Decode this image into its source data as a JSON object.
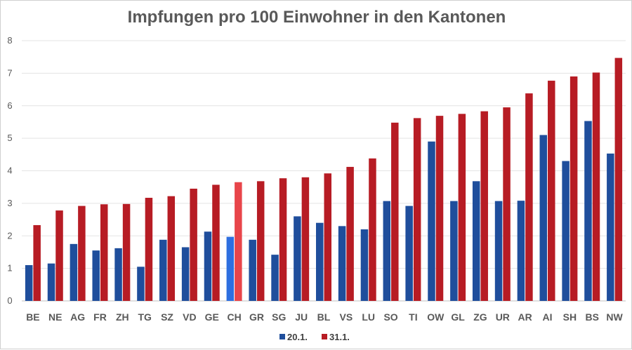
{
  "chart_data": {
    "type": "bar",
    "title": "Impfungen pro 100 Einwohner in den Kantonen",
    "xlabel": "",
    "ylabel": "",
    "ylim": [
      0,
      8
    ],
    "yticks": [
      0,
      1,
      2,
      3,
      4,
      5,
      6,
      7,
      8
    ],
    "grid": true,
    "legend_position": "bottom",
    "highlight_category": "CH",
    "categories": [
      "BE",
      "NE",
      "AG",
      "FR",
      "ZH",
      "TG",
      "SZ",
      "VD",
      "GE",
      "CH",
      "GR",
      "SG",
      "JU",
      "BL",
      "VS",
      "LU",
      "SO",
      "TI",
      "OW",
      "GL",
      "ZG",
      "UR",
      "AR",
      "AI",
      "SH",
      "BS",
      "NW"
    ],
    "series": [
      {
        "name": "20.1.",
        "color": "#1f4e9c",
        "highlight_color": "#2e6fe0",
        "values": [
          1.1,
          1.15,
          1.75,
          1.55,
          1.62,
          1.05,
          1.88,
          1.65,
          2.13,
          1.97,
          1.88,
          1.42,
          2.6,
          2.4,
          2.3,
          2.2,
          3.07,
          2.92,
          4.9,
          3.07,
          3.68,
          3.07,
          3.08,
          5.1,
          4.3,
          5.53,
          4.53
        ]
      },
      {
        "name": "31.1.",
        "color": "#b71c24",
        "highlight_color": "#e8454a",
        "values": [
          2.33,
          2.78,
          2.92,
          2.97,
          2.98,
          3.17,
          3.22,
          3.45,
          3.57,
          3.65,
          3.68,
          3.77,
          3.8,
          3.92,
          4.12,
          4.38,
          5.48,
          5.62,
          5.69,
          5.75,
          5.83,
          5.95,
          6.38,
          6.77,
          6.9,
          7.02,
          7.47
        ]
      }
    ]
  }
}
